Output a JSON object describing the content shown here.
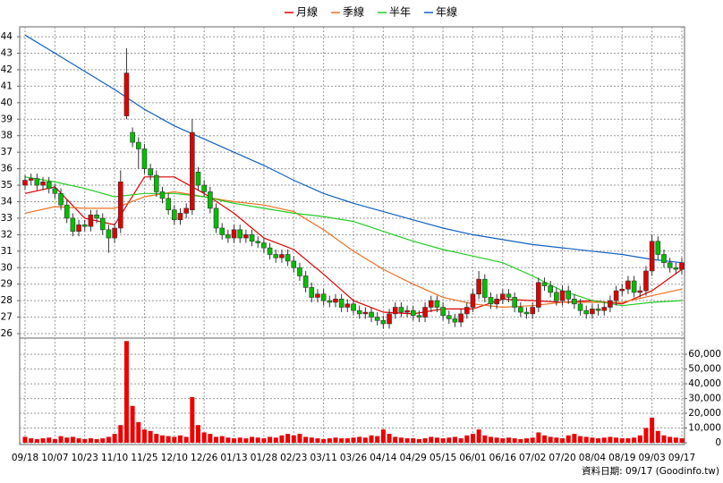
{
  "chart_data": {
    "type": "candlestick",
    "note": "資料日期: 09/17 (Goodinfo.tw)",
    "up_color": "#e00000",
    "down_color": "#00c000",
    "grid": true,
    "legend": "top",
    "xlim": [
      -0.9,
      110.45
    ],
    "xticks": [
      {
        "value": 0,
        "label": "09/18"
      },
      {
        "value": 5,
        "label": "10/07"
      },
      {
        "value": 10,
        "label": "10/23"
      },
      {
        "value": 15,
        "label": "11/10"
      },
      {
        "value": 20,
        "label": "11/25"
      },
      {
        "value": 25,
        "label": "12/10"
      },
      {
        "value": 30,
        "label": "12/26"
      },
      {
        "value": 35,
        "label": "01/13"
      },
      {
        "value": 40,
        "label": "01/28"
      },
      {
        "value": 45,
        "label": "02/23"
      },
      {
        "value": 50,
        "label": "03/11"
      },
      {
        "value": 55,
        "label": "03/26"
      },
      {
        "value": 60,
        "label": "04/14"
      },
      {
        "value": 65,
        "label": "04/29"
      },
      {
        "value": 70,
        "label": "05/15"
      },
      {
        "value": 75,
        "label": "06/01"
      },
      {
        "value": 80,
        "label": "06/16"
      },
      {
        "value": 85,
        "label": "07/02"
      },
      {
        "value": 90,
        "label": "07/20"
      },
      {
        "value": 95,
        "label": "08/04"
      },
      {
        "value": 100,
        "label": "08/19"
      },
      {
        "value": 105,
        "label": "09/03"
      },
      {
        "value": 110,
        "label": "09/17"
      }
    ],
    "ylim": [
      25.73,
      44.6
    ],
    "yticks": [
      26,
      27,
      28,
      29,
      30,
      31,
      32,
      33,
      34,
      35,
      36,
      37,
      38,
      39,
      40,
      41,
      42,
      43,
      44
    ],
    "y2lim": [
      0,
      71000
    ],
    "y2ticks": [
      {
        "value": 0,
        "label": "0"
      },
      {
        "value": 10000,
        "label": "10,000"
      },
      {
        "value": 20000,
        "label": "20,000"
      },
      {
        "value": 30000,
        "label": "30,000"
      },
      {
        "value": 40000,
        "label": "40,000"
      },
      {
        "value": 50000,
        "label": "50,000"
      },
      {
        "value": 60000,
        "label": "60,000"
      }
    ],
    "open": [
      35.0,
      35.3,
      35.4,
      35.0,
      35.2,
      34.8,
      34.5,
      33.8,
      33.0,
      32.2,
      32.6,
      32.5,
      33.2,
      33.0,
      32.3,
      31.8,
      32.4,
      39.2,
      38.2,
      37.6,
      37.2,
      36.0,
      35.6,
      34.6,
      34.2,
      33.5,
      32.9,
      33.3,
      33.5,
      35.8,
      35.0,
      34.6,
      33.6,
      32.4,
      32.0,
      31.8,
      32.3,
      31.8,
      32.0,
      31.6,
      31.5,
      31.2,
      30.8,
      30.6,
      30.8,
      30.4,
      30.0,
      29.5,
      28.8,
      28.2,
      28.4,
      28.0,
      27.9,
      28.1,
      27.6,
      27.8,
      27.4,
      27.2,
      27.3,
      27.0,
      26.8,
      26.6,
      27.2,
      27.6,
      27.3,
      27.4,
      27.1,
      27.0,
      27.6,
      28.0,
      27.6,
      27.1,
      26.9,
      26.7,
      27.2,
      27.6,
      28.4,
      29.3,
      28.2,
      27.8,
      28.1,
      28.4,
      28.2,
      27.6,
      27.3,
      27.2,
      27.6,
      29.1,
      28.9,
      28.5,
      28.0,
      28.6,
      28.1,
      27.8,
      27.4,
      27.2,
      27.5,
      27.4,
      27.6,
      28.0,
      28.6,
      28.7,
      29.2,
      28.5,
      28.6,
      29.8,
      31.6,
      30.8,
      30.3,
      30.0,
      29.9
    ],
    "high": [
      35.6,
      35.7,
      35.7,
      35.5,
      35.5,
      35.1,
      34.8,
      34.1,
      33.3,
      32.9,
      32.9,
      33.5,
      33.5,
      33.3,
      32.6,
      32.7,
      35.9,
      43.3,
      38.5,
      37.9,
      37.5,
      36.3,
      35.9,
      34.9,
      34.5,
      33.8,
      33.6,
      33.9,
      39.0,
      36.1,
      35.3,
      34.9,
      33.9,
      32.7,
      32.3,
      32.6,
      32.6,
      32.3,
      32.3,
      31.9,
      31.8,
      31.5,
      31.1,
      31.1,
      31.1,
      30.7,
      30.3,
      29.8,
      29.1,
      28.7,
      28.7,
      28.3,
      28.4,
      28.4,
      28.1,
      28.1,
      27.7,
      27.6,
      27.6,
      27.3,
      27.1,
      27.5,
      27.9,
      27.9,
      27.7,
      27.7,
      27.4,
      27.9,
      28.3,
      28.3,
      27.9,
      27.4,
      27.2,
      27.5,
      27.9,
      28.7,
      29.8,
      29.6,
      28.5,
      28.4,
      28.7,
      28.7,
      28.5,
      27.9,
      27.6,
      27.9,
      29.4,
      29.4,
      29.2,
      28.8,
      28.9,
      28.9,
      28.4,
      28.1,
      27.7,
      27.8,
      27.8,
      27.9,
      28.3,
      28.9,
      29.0,
      29.5,
      29.5,
      28.9,
      30.1,
      32.0,
      31.9,
      31.1,
      30.6,
      30.3,
      30.6
    ],
    "low": [
      34.7,
      35.0,
      34.7,
      34.7,
      34.5,
      34.2,
      33.5,
      32.7,
      31.9,
      31.9,
      32.2,
      32.2,
      32.7,
      32.0,
      30.9,
      31.5,
      32.1,
      39.0,
      37.3,
      36.0,
      35.7,
      35.3,
      34.3,
      33.9,
      33.2,
      32.6,
      32.6,
      33.0,
      33.2,
      34.7,
      34.3,
      33.3,
      32.1,
      31.7,
      31.5,
      31.5,
      31.5,
      31.5,
      31.3,
      31.2,
      30.9,
      30.5,
      30.3,
      30.3,
      30.1,
      29.7,
      29.2,
      28.5,
      27.9,
      27.9,
      27.7,
      27.6,
      27.6,
      27.3,
      27.3,
      27.1,
      26.9,
      26.9,
      26.7,
      26.5,
      26.3,
      26.3,
      26.9,
      27.0,
      27.0,
      26.8,
      26.7,
      26.7,
      27.3,
      27.3,
      26.8,
      26.6,
      26.4,
      26.4,
      26.9,
      27.3,
      28.1,
      27.9,
      27.5,
      27.5,
      27.8,
      27.9,
      27.3,
      27.0,
      26.9,
      26.9,
      27.3,
      28.6,
      28.2,
      27.7,
      27.7,
      27.8,
      27.5,
      27.1,
      26.9,
      26.9,
      27.1,
      27.1,
      27.3,
      27.7,
      28.3,
      28.4,
      28.2,
      28.2,
      28.3,
      29.5,
      30.5,
      30.0,
      29.7,
      29.6,
      29.6
    ],
    "close": [
      35.3,
      35.4,
      35.0,
      35.2,
      34.8,
      34.5,
      33.8,
      33.0,
      32.2,
      32.6,
      32.5,
      33.2,
      33.0,
      32.3,
      31.8,
      32.4,
      35.2,
      41.8,
      37.6,
      37.2,
      36.0,
      35.6,
      34.6,
      34.2,
      33.5,
      32.9,
      33.3,
      33.6,
      38.2,
      35.0,
      34.6,
      33.6,
      32.4,
      32.0,
      31.8,
      32.3,
      31.8,
      32.0,
      31.6,
      31.5,
      31.2,
      30.8,
      30.6,
      30.8,
      30.4,
      30.0,
      29.5,
      28.8,
      28.2,
      28.4,
      28.0,
      27.9,
      28.1,
      27.6,
      27.8,
      27.4,
      27.2,
      27.3,
      27.0,
      26.8,
      26.6,
      27.2,
      27.6,
      27.3,
      27.4,
      27.1,
      27.0,
      27.6,
      28.0,
      27.6,
      27.1,
      26.9,
      26.7,
      27.2,
      27.6,
      28.4,
      29.3,
      28.2,
      27.8,
      28.1,
      28.4,
      28.2,
      27.6,
      27.3,
      27.2,
      27.6,
      29.1,
      28.9,
      28.5,
      28.0,
      28.6,
      28.1,
      27.8,
      27.4,
      27.2,
      27.5,
      27.4,
      27.6,
      28.0,
      28.6,
      28.7,
      29.2,
      28.5,
      28.6,
      29.8,
      31.6,
      30.8,
      30.3,
      30.0,
      29.9,
      30.3
    ],
    "volume": {
      "color": "#ee0000",
      "values": [
        4000,
        3000,
        2500,
        3000,
        3500,
        2500,
        4500,
        3500,
        4000,
        3000,
        2500,
        3000,
        2500,
        3000,
        4000,
        6000,
        12000,
        69000,
        25000,
        14000,
        9000,
        8000,
        6000,
        5000,
        4500,
        4000,
        5000,
        4000,
        31000,
        12000,
        7000,
        6000,
        4000,
        4500,
        3500,
        3000,
        3500,
        3000,
        4000,
        3500,
        3000,
        4000,
        3500,
        5000,
        6000,
        5000,
        6000,
        4000,
        3500,
        3000,
        2500,
        3000,
        3500,
        3000,
        3000,
        3500,
        4000,
        3500,
        5000,
        4500,
        9000,
        6000,
        4000,
        3500,
        3000,
        3000,
        2500,
        3000,
        4000,
        3500,
        3000,
        3500,
        4000,
        3000,
        5000,
        6000,
        9000,
        5000,
        4000,
        3500,
        3000,
        3500,
        3000,
        2500,
        3000,
        3500,
        7000,
        5000,
        4000,
        3500,
        3000,
        5000,
        6000,
        4500,
        4000,
        3500,
        3000,
        3500,
        4000,
        3500,
        3000,
        3000,
        3500,
        5000,
        10000,
        17000,
        8000,
        5000,
        4000,
        3500,
        3000
      ]
    },
    "series": [
      {
        "name": "月線",
        "color": "#dd0000",
        "x": [
          0,
          5,
          10,
          15,
          20,
          25,
          30,
          35,
          40,
          45,
          50,
          55,
          60,
          65,
          70,
          75,
          80,
          85,
          90,
          95,
          100,
          105,
          110
        ],
        "values": [
          34.5,
          34.9,
          33.0,
          32.6,
          35.5,
          35.5,
          34.5,
          33.3,
          31.8,
          31.1,
          29.6,
          28.0,
          27.3,
          27.2,
          27.5,
          27.5,
          28.1,
          28.0,
          27.9,
          28.0,
          27.8,
          28.6,
          29.9
        ]
      },
      {
        "name": "季線",
        "color": "#ee7020",
        "x": [
          0,
          5,
          10,
          15,
          20,
          25,
          30,
          35,
          40,
          45,
          50,
          55,
          60,
          65,
          70,
          75,
          80,
          85,
          90,
          95,
          100,
          105,
          110
        ],
        "values": [
          33.3,
          33.7,
          33.6,
          33.6,
          34.3,
          34.6,
          34.3,
          34.0,
          33.8,
          33.4,
          32.3,
          31.0,
          29.9,
          29.0,
          28.2,
          27.8,
          27.6,
          27.7,
          27.9,
          27.9,
          27.9,
          28.3,
          28.7
        ]
      },
      {
        "name": "半年",
        "color": "#22cc22",
        "x": [
          0,
          5,
          10,
          15,
          20,
          25,
          30,
          35,
          40,
          45,
          50,
          55,
          60,
          65,
          70,
          75,
          80,
          85,
          90,
          95,
          100,
          105,
          110
        ],
        "values": [
          35.5,
          35.2,
          34.8,
          34.3,
          34.5,
          34.5,
          34.3,
          33.9,
          33.6,
          33.3,
          33.1,
          32.8,
          32.2,
          31.6,
          31.1,
          30.7,
          30.3,
          29.5,
          28.6,
          28.0,
          27.7,
          27.9,
          28.0
        ]
      },
      {
        "name": "年線",
        "color": "#1060c0",
        "x": [
          0,
          5,
          10,
          15,
          20,
          25,
          30,
          35,
          40,
          45,
          50,
          55,
          60,
          65,
          70,
          75,
          80,
          85,
          90,
          95,
          100,
          105,
          110
        ],
        "values": [
          44.1,
          43.0,
          41.9,
          40.8,
          39.6,
          38.6,
          37.8,
          37.0,
          36.2,
          35.3,
          34.5,
          33.9,
          33.4,
          32.9,
          32.4,
          32.0,
          31.7,
          31.4,
          31.2,
          31.0,
          30.8,
          30.5,
          30.3
        ]
      }
    ]
  }
}
